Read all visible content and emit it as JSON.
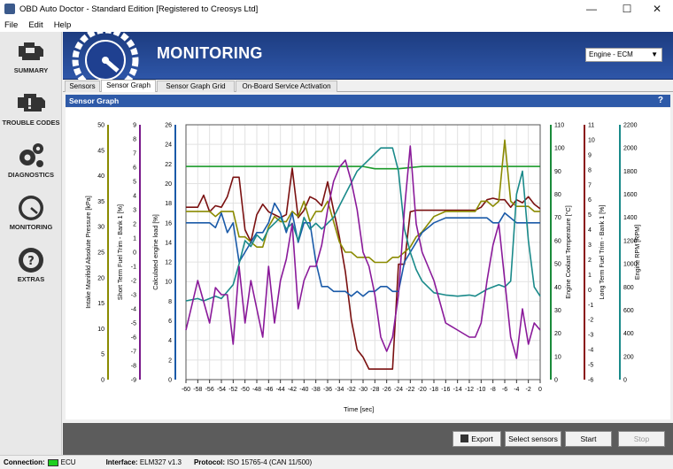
{
  "window": {
    "title": "OBD Auto Doctor - Standard Edition [Registered to Creosys Ltd]"
  },
  "menu": [
    "File",
    "Edit",
    "Help"
  ],
  "sidebar": [
    {
      "label": "SUMMARY",
      "icon": "engine-icon"
    },
    {
      "label": "TROUBLE CODES",
      "icon": "check-engine-icon"
    },
    {
      "label": "DIAGNOSTICS",
      "icon": "gears-icon"
    },
    {
      "label": "MONITORING",
      "icon": "gauge-icon"
    },
    {
      "label": "EXTRAS",
      "icon": "lifebuoy-question-icon"
    }
  ],
  "header": {
    "title": "MONITORING",
    "ecu_select": "Engine - ECM"
  },
  "tabs": [
    {
      "label": "Sensors",
      "active": false
    },
    {
      "label": "Sensor Graph",
      "active": true
    },
    {
      "label": "Sensor Graph Grid",
      "active": false
    },
    {
      "label": "On-Board Service Activation",
      "active": false
    }
  ],
  "panel": {
    "title": "Sensor Graph",
    "help": "?"
  },
  "chart_data": {
    "type": "line",
    "xlabel": "Time [sec]",
    "x_ticks": [
      "-60",
      "-58",
      "-56",
      "-54",
      "-52",
      "-50",
      "-48",
      "-46",
      "-44",
      "-42",
      "-40",
      "-38",
      "-36",
      "-34",
      "-32",
      "-30",
      "-28",
      "-26",
      "-24",
      "-22",
      "-20",
      "-18",
      "-16",
      "-14",
      "-12",
      "-10",
      "-8",
      "-6",
      "-4",
      "-2",
      "0"
    ],
    "xlim": [
      -60,
      0
    ],
    "axes": [
      {
        "label": "Intake Manifold Absolute Pressure [kPa]",
        "color": "#8a8a00",
        "ticks": [
          "0",
          "5",
          "10",
          "15",
          "20",
          "25",
          "30",
          "35",
          "40",
          "45",
          "50"
        ],
        "ylim": [
          0,
          50
        ]
      },
      {
        "label": "Short Term Fuel Trim - Bank 1 [%]",
        "color": "#7a1a8a",
        "ticks": [
          "-9",
          "-8",
          "-7",
          "-6",
          "-5",
          "-4",
          "-3",
          "-2",
          "-1",
          "0",
          "1",
          "2",
          "3",
          "4",
          "5",
          "6",
          "7",
          "8",
          "9"
        ],
        "ylim": [
          -9,
          9
        ]
      },
      {
        "label": "Calculated engine load [%]",
        "color": "#1a5aa8",
        "ticks": [
          "0",
          "2",
          "4",
          "6",
          "8",
          "10",
          "12",
          "14",
          "16",
          "18",
          "20",
          "22",
          "24",
          "26"
        ],
        "ylim": [
          0,
          26
        ]
      },
      {
        "label": "Engine Coolant Temperature [°C]",
        "color": "#1a8a3a",
        "ticks": [
          "0",
          "10",
          "20",
          "30",
          "40",
          "50",
          "60",
          "70",
          "80",
          "90",
          "100",
          "110"
        ],
        "ylim": [
          0,
          110
        ]
      },
      {
        "label": "Long Term Fuel Trim - Bank 1 [%]",
        "color": "#8a1010",
        "ticks": [
          "-6",
          "-5",
          "-4",
          "-3",
          "-2",
          "-1",
          "0",
          "1",
          "2",
          "3",
          "4",
          "5",
          "6",
          "7",
          "8",
          "9",
          "10",
          "11"
        ],
        "ylim": [
          -6,
          11
        ]
      },
      {
        "label": "Engine RPM [RPM]",
        "color": "#1a8a8a",
        "ticks": [
          "0",
          "200",
          "400",
          "600",
          "800",
          "1000",
          "1200",
          "1400",
          "1600",
          "1800",
          "2000",
          "2200"
        ],
        "ylim": [
          0,
          2200
        ]
      }
    ],
    "series": [
      {
        "name": "Engine Coolant Temperature [°C]",
        "color": "#1a9a2a",
        "x": [
          -60,
          -50,
          -40,
          -30,
          -28,
          -24,
          -20,
          -10,
          0
        ],
        "y": [
          92,
          92,
          92,
          92,
          91,
          91,
          92,
          92,
          92
        ]
      },
      {
        "name": "Long Term Fuel Trim - Bank 1 [%]",
        "color": "#7a1010",
        "x": [
          -60,
          -58,
          -57,
          -56,
          -55,
          -54,
          -53,
          -52,
          -51,
          -50,
          -49,
          -48,
          -47,
          -46,
          -45,
          -44,
          -43,
          -42,
          -41,
          -40,
          -39,
          -38,
          -37,
          -36,
          -35,
          -34,
          -33,
          -32,
          -31,
          -30,
          -29,
          -28,
          -27,
          -26,
          -25,
          -24,
          -23,
          -22,
          -21,
          -20,
          -18,
          -16,
          -14,
          -12,
          -11,
          -10,
          -9,
          -8,
          -7,
          -6,
          -5,
          -4,
          -3,
          -2,
          -1,
          0
        ],
        "y": [
          5.5,
          5.5,
          6.3,
          5.2,
          5.6,
          5.5,
          6.2,
          7.5,
          7.5,
          4,
          3.2,
          5,
          5.7,
          5.2,
          5,
          4.8,
          5,
          8.1,
          4.8,
          5.3,
          6.2,
          6,
          5.6,
          7.2,
          5.3,
          3.5,
          1.2,
          -2,
          -4,
          -4.5,
          -5.3,
          -5.3,
          -5.3,
          -5.3,
          -5.3,
          1.7,
          1.7,
          5.2,
          5.3,
          5.3,
          5.3,
          5.3,
          5.3,
          5.3,
          5.3,
          5.5,
          6,
          6.1,
          6,
          6,
          5.5,
          6,
          5.8,
          6.2,
          5.7,
          5.4
        ]
      },
      {
        "name": "Intake Manifold Absolute Pressure [kPa]",
        "color": "#8a8a00",
        "x": [
          -60,
          -58,
          -57,
          -56,
          -55,
          -54,
          -53,
          -52,
          -51,
          -50,
          -49,
          -48,
          -47,
          -46,
          -45,
          -44,
          -43,
          -42,
          -41,
          -40,
          -39,
          -38,
          -37,
          -36,
          -35,
          -34,
          -33,
          -32,
          -31,
          -30,
          -29,
          -28,
          -27,
          -26,
          -25,
          -24,
          -23,
          -22,
          -21,
          -20,
          -18,
          -16,
          -14,
          -12,
          -11,
          -10,
          -9,
          -8,
          -7,
          -6,
          -5,
          -4,
          -3,
          -2,
          -1,
          0
        ],
        "y": [
          33,
          33,
          33,
          33,
          32,
          33,
          33,
          33,
          28,
          28,
          27,
          26,
          26,
          30,
          32,
          31,
          31,
          33,
          32,
          35,
          31,
          33,
          33,
          35,
          31,
          27,
          25,
          25,
          24,
          24,
          24,
          23,
          23,
          23,
          24,
          24,
          25,
          26,
          28,
          29,
          32,
          33,
          33,
          33,
          33,
          35,
          35,
          34,
          35,
          47,
          35,
          34,
          34,
          34,
          33,
          33
        ]
      },
      {
        "name": "Calculated engine load [%]",
        "color": "#1a5aa8",
        "x": [
          -60,
          -58,
          -57,
          -56,
          -55,
          -54,
          -53,
          -52,
          -51,
          -50,
          -49,
          -48,
          -47,
          -46,
          -45,
          -44,
          -43,
          -42,
          -41,
          -40,
          -39,
          -38,
          -37,
          -36,
          -35,
          -34,
          -33,
          -32,
          -31,
          -30,
          -29,
          -28,
          -27,
          -26,
          -25,
          -24,
          -23,
          -22,
          -21,
          -20,
          -18,
          -16,
          -14,
          -12,
          -11,
          -10,
          -9,
          -8,
          -7,
          -6,
          -5,
          -4,
          -3,
          -2,
          -1,
          0
        ],
        "y": [
          16,
          16,
          16,
          16,
          15.5,
          17,
          15,
          16,
          12,
          13,
          14,
          15,
          15,
          16,
          18,
          17,
          15,
          17,
          14,
          16,
          16,
          12,
          9.5,
          9.5,
          9,
          9,
          9,
          8.5,
          9,
          8.5,
          9,
          9,
          9.5,
          9.5,
          9,
          9,
          12,
          13,
          14,
          15,
          16,
          16.5,
          16.5,
          16.5,
          16.5,
          16.5,
          16.5,
          16,
          16,
          17,
          16.5,
          16,
          16,
          16,
          16,
          16
        ]
      },
      {
        "name": "Engine RPM [RPM]",
        "color": "#1a8a8a",
        "x": [
          -60,
          -58,
          -57,
          -56,
          -55,
          -54,
          -53,
          -52,
          -51,
          -50,
          -49,
          -48,
          -47,
          -46,
          -45,
          -44,
          -43,
          -42,
          -41,
          -40,
          -39,
          -38,
          -37,
          -36,
          -35,
          -34,
          -33,
          -32,
          -31,
          -30,
          -29,
          -28,
          -27,
          -26,
          -25,
          -24,
          -23,
          -22,
          -21,
          -20,
          -18,
          -16,
          -14,
          -12,
          -11,
          -10,
          -9,
          -8,
          -7,
          -6,
          -5,
          -4,
          -3,
          -2,
          -1,
          0
        ],
        "y": [
          680,
          700,
          680,
          700,
          720,
          700,
          760,
          820,
          1000,
          1200,
          1150,
          1250,
          1200,
          1300,
          1350,
          1400,
          1300,
          1350,
          1200,
          1400,
          1300,
          1350,
          1300,
          1350,
          1400,
          1500,
          1600,
          1700,
          1800,
          1850,
          1900,
          1950,
          2000,
          2000,
          2000,
          1800,
          1300,
          1100,
          950,
          850,
          750,
          730,
          720,
          730,
          720,
          750,
          780,
          800,
          820,
          800,
          850,
          1600,
          1800,
          1200,
          800,
          720
        ]
      },
      {
        "name": "Short Term Fuel Trim - Bank 1 [%]",
        "color": "#8a1a9a",
        "x": [
          -60,
          -58,
          -57,
          -56,
          -55,
          -54,
          -53,
          -52,
          -51,
          -50,
          -49,
          -48,
          -47,
          -46,
          -45,
          -44,
          -43,
          -42,
          -41,
          -40,
          -39,
          -38,
          -37,
          -36,
          -35,
          -34,
          -33,
          -32,
          -31,
          -30,
          -29,
          -28,
          -27,
          -26,
          -25,
          -24,
          -23,
          -22,
          -21,
          -20,
          -18,
          -16,
          -14,
          -12,
          -11,
          -10,
          -9,
          -8,
          -7,
          -6,
          -5,
          -4,
          -3,
          -2,
          -1,
          0
        ],
        "y": [
          -5.5,
          -2,
          -3.5,
          -5,
          -2.5,
          -3,
          -3,
          -6.5,
          -1,
          -5,
          -2,
          -4,
          -6,
          -1,
          -5,
          -2,
          -0.5,
          2,
          -4,
          -2,
          -1,
          -1,
          0.5,
          3,
          5,
          6,
          6.5,
          5,
          3,
          0,
          -1,
          -3,
          -6,
          -7,
          -6,
          -3,
          3,
          7.5,
          2,
          0,
          -2,
          -5,
          -5.5,
          -6,
          -6,
          -5,
          -2,
          0.5,
          2,
          -2,
          -6,
          -7.5,
          -4,
          -6.5,
          -5,
          -5.5
        ]
      }
    ]
  },
  "bottom_buttons": {
    "export": "Export",
    "select_sensors": "Select sensors",
    "start": "Start",
    "stop": "Stop"
  },
  "status": {
    "connection_label": "Connection:",
    "connection_value": "ECU",
    "interface_label": "Interface:",
    "interface_value": "ELM327 v1.3",
    "protocol_label": "Protocol:",
    "protocol_value": "ISO 15765-4 (CAN 11/500)"
  }
}
